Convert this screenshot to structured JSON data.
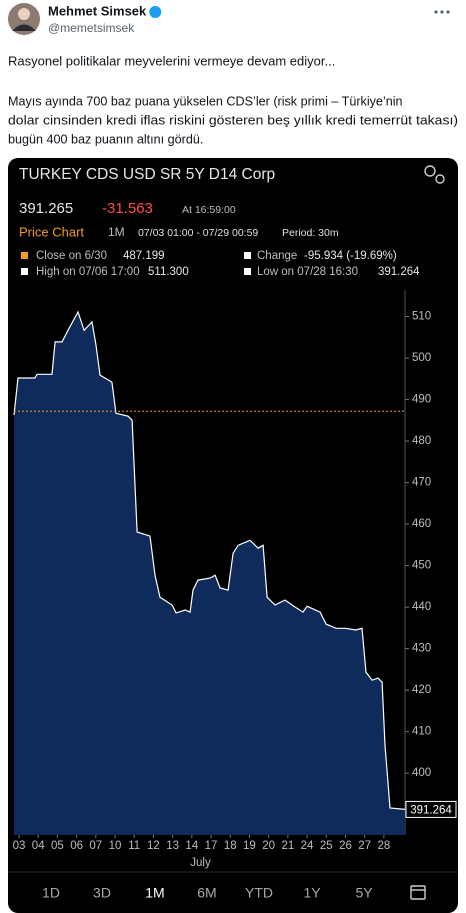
{
  "author": {
    "name": "Mehmet Simsek",
    "handle": "@memetsimsek"
  },
  "text": [
    "Rasyonel politikalar meyvelerini vermeye devam ediyor...",
    "Mayıs ayında 700 baz puana yükselen CDS’ler (risk primi – Türkiye’nin",
    "dolar cinsinden kredi iflas riskini gösteren beş yıllık kredi temerrüt takası)",
    "bugün 400 baz puanın altını gördü."
  ],
  "chart_data": {
    "type": "area",
    "title": "TURKEY CDS USD SR 5Y D14 Corp",
    "last": "391.265",
    "change": "-31.563",
    "time": "At 16:59:00",
    "chart_label": "Price Chart",
    "selected_range": "1M",
    "range": "07/03 01:00 - 07/29 00:59",
    "period": "Period: 30m",
    "close_label": "Close on 6/30",
    "close": 487.199,
    "change_label": "Change",
    "change_value": "-95.934 (-19.69%)",
    "high_label": "High on 07/06 17:00",
    "high": "511.300",
    "low_label": "Low on 07/28 16:30",
    "low": "391.264",
    "x_label": "July",
    "xlim": [
      -0.26,
      20.1
    ],
    "xticks": [
      {
        "value": 0,
        "label": "03"
      },
      {
        "value": 1,
        "label": "04"
      },
      {
        "value": 2,
        "label": "05"
      },
      {
        "value": 3,
        "label": "06"
      },
      {
        "value": 4,
        "label": "07"
      },
      {
        "value": 5,
        "label": "10"
      },
      {
        "value": 6,
        "label": "11"
      },
      {
        "value": 7,
        "label": "12"
      },
      {
        "value": 8,
        "label": "13"
      },
      {
        "value": 9,
        "label": "14"
      },
      {
        "value": 10,
        "label": "17"
      },
      {
        "value": 11,
        "label": "18"
      },
      {
        "value": 12,
        "label": "19"
      },
      {
        "value": 13,
        "label": "20"
      },
      {
        "value": 14,
        "label": "21"
      },
      {
        "value": 15,
        "label": "24"
      },
      {
        "value": 16,
        "label": "25"
      },
      {
        "value": 17,
        "label": "26"
      },
      {
        "value": 18,
        "label": "27"
      },
      {
        "value": 19,
        "label": "28"
      }
    ],
    "ylim": [
      385.1,
      516.4
    ],
    "yticks": [
      400,
      410,
      420,
      430,
      440,
      450,
      460,
      470,
      480,
      490,
      500,
      510
    ],
    "series": [
      {
        "color": "#ffffff",
        "fill": "#0e2b5c",
        "x": [
          -0.26,
          -0.05,
          0.83,
          0.94,
          1.72,
          1.88,
          2.24,
          2.55,
          3.07,
          3.39,
          3.8,
          4.01,
          4.22,
          4.84,
          5.05,
          5.68,
          5.89,
          6.15,
          6.82,
          7.08,
          7.34,
          7.97,
          8.18,
          8.65,
          8.91,
          9.06,
          9.32,
          9.95,
          10.21,
          10.47,
          10.89,
          11.15,
          11.41,
          12.03,
          12.45,
          12.71,
          12.92,
          13.33,
          13.85,
          14.38,
          14.79,
          15,
          15.68,
          15.99,
          16.51,
          16.98,
          17.55,
          17.86,
          18.07,
          18.39,
          18.7,
          18.91,
          19.06,
          19.32,
          20.1
        ],
        "values": [
          486.3,
          495.2,
          495.2,
          496.1,
          496.1,
          503.9,
          503.9,
          506.7,
          511.1,
          506.7,
          508.7,
          503.1,
          495.9,
          494.2,
          486.7,
          486,
          485,
          458.1,
          457.1,
          447.7,
          442.4,
          440.5,
          438.6,
          439.3,
          438.8,
          444.1,
          446.5,
          447,
          447.7,
          444.6,
          444.1,
          453,
          454.9,
          456.1,
          454.2,
          454.9,
          442.4,
          440.5,
          441.7,
          440,
          438.8,
          440.2,
          438.8,
          435.9,
          434.9,
          434.9,
          434.5,
          434.9,
          424.3,
          422.4,
          422.9,
          421.9,
          406.7,
          391.6,
          391.264
        ]
      }
    ],
    "ranges": [
      "1D",
      "3D",
      "1M",
      "6M",
      "YTD",
      "1Y",
      "5Y"
    ]
  }
}
